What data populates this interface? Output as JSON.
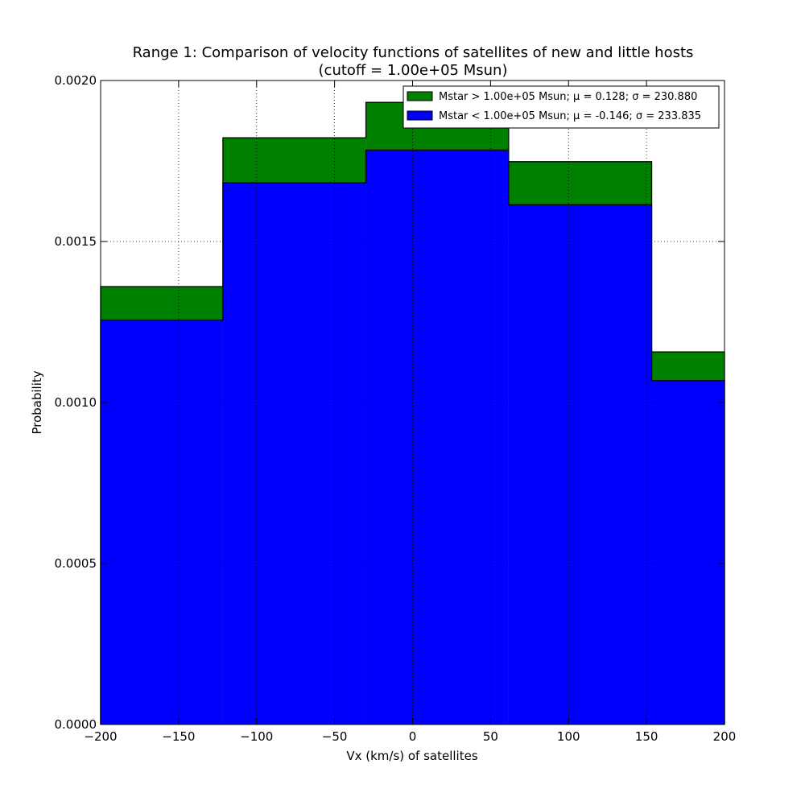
{
  "chart_data": {
    "type": "bar",
    "title_line1": "Range 1: Comparison of velocity functions of satellites of new and little hosts",
    "title_line2": "(cutoff = 1.00e+05 Msun)",
    "xlabel": "Vx (km/s) of satellites",
    "ylabel": "Probability",
    "xlim": [
      -200,
      200
    ],
    "ylim": [
      0,
      0.002
    ],
    "grid": true,
    "legend_position": "top-right",
    "x_ticks": [
      "−200",
      "−150",
      "−100",
      "−50",
      "0",
      "50",
      "100",
      "150",
      "200"
    ],
    "x_tick_values": [
      -200,
      -150,
      -100,
      -50,
      0,
      50,
      100,
      150,
      200
    ],
    "y_ticks": [
      "0.0000",
      "0.0005",
      "0.0010",
      "0.0015",
      "0.0020"
    ],
    "y_tick_values": [
      0,
      0.0005,
      0.001,
      0.0015,
      0.002
    ],
    "bin_edges": [
      -200,
      -121.6,
      -29.9,
      61.6,
      153.3,
      200
    ],
    "series": [
      {
        "name": "Mstar > 1.00e+05 Msun; μ = 0.128; σ = 230.880",
        "color": "#008000",
        "values": [
          0.00136,
          0.001822,
          0.001932,
          0.001748,
          0.001157
        ]
      },
      {
        "name": "Mstar < 1.00e+05 Msun; μ = -0.146; σ = 233.835",
        "color": "#0000ff",
        "values": [
          0.001256,
          0.001682,
          0.001784,
          0.001614,
          0.001068
        ]
      }
    ]
  }
}
